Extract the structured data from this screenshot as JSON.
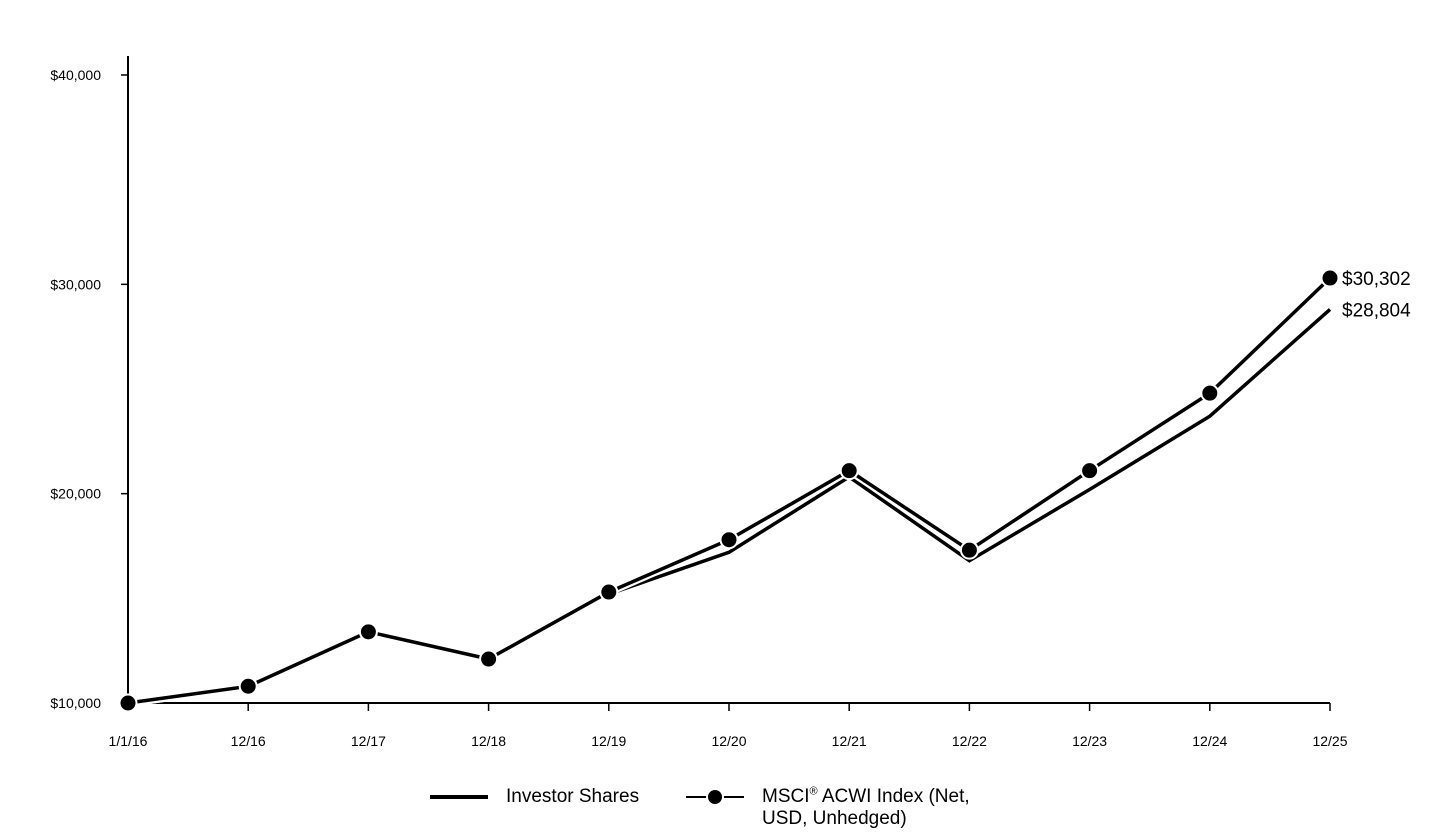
{
  "chart_data": {
    "type": "line",
    "categories": [
      "1/1/16",
      "12/16",
      "12/17",
      "12/18",
      "12/19",
      "12/20",
      "12/21",
      "12/22",
      "12/23",
      "12/24",
      "12/25"
    ],
    "series": [
      {
        "name": "Investor Shares",
        "marker": "none",
        "values": [
          10000,
          10800,
          13400,
          12100,
          15200,
          17200,
          20800,
          16800,
          20200,
          23700,
          28804
        ],
        "end_label": "$28,804"
      },
      {
        "name": "MSCI® ACWI Index (Net, USD, Unhedged)",
        "marker": "circle",
        "values": [
          10000,
          10800,
          13400,
          12100,
          15300,
          17800,
          21100,
          17300,
          21100,
          24800,
          30302
        ],
        "end_label": "$30,302"
      }
    ],
    "yticks": [
      10000,
      20000,
      30000,
      40000
    ],
    "ytick_labels": [
      "$10,000",
      "$20,000",
      "$30,000",
      "$40,000"
    ],
    "ylim": [
      10000,
      40000
    ],
    "grid": false,
    "legend_position": "bottom-center",
    "line_color": "#000000"
  },
  "legend": {
    "investor_label": "Investor Shares",
    "index_label_prefix": "MSCI",
    "index_label_sup": "®",
    "index_label_rest": " ACWI Index (Net,",
    "index_label_line2": "USD, Unhedged)"
  }
}
